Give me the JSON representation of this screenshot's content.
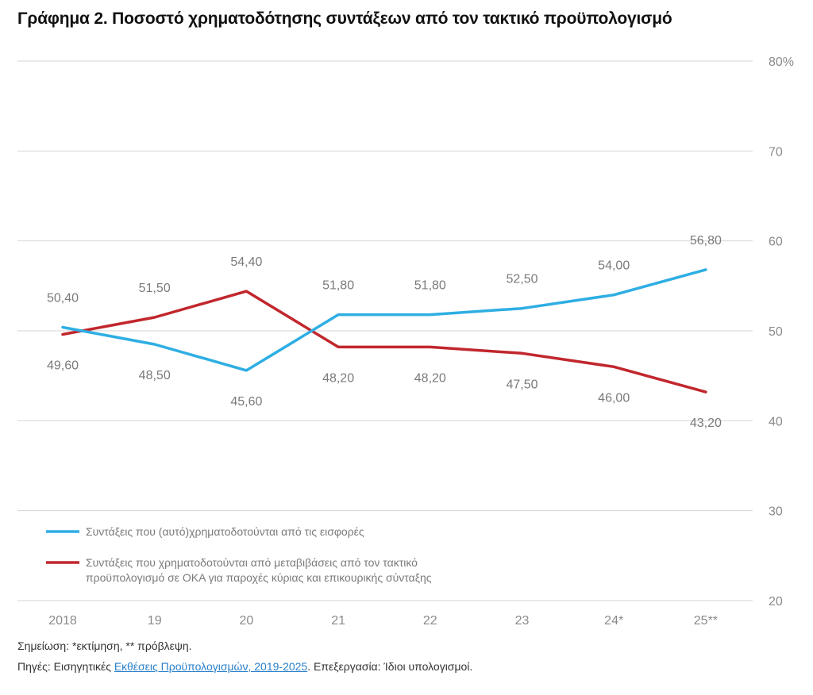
{
  "title": "Γράφημα 2. Ποσοστό χρηματοδότησης συντάξεων από τον τακτικό προϋπολογισμό",
  "chart_data": {
    "type": "line",
    "categories": [
      "2018",
      "19",
      "20",
      "21",
      "22",
      "23",
      "24*",
      "25**"
    ],
    "ylim": [
      20,
      80
    ],
    "yticks": [
      "20",
      "30",
      "40",
      "50",
      "60",
      "70",
      "80%"
    ],
    "grid": true,
    "legend_position": "bottom-left",
    "series": [
      {
        "name": "Συντάξεις που (αυτό)χρηματοδοτούνται από τις εισφορές",
        "color": "#2eaee3",
        "values": [
          50.4,
          48.5,
          45.6,
          51.8,
          51.8,
          52.5,
          54.0,
          56.8
        ],
        "labels": [
          "50,40",
          "48,50",
          "45,60",
          "51,80",
          "51,80",
          "52,50",
          "54,00",
          "56,80"
        ]
      },
      {
        "name": "Συντάξεις που χρηματοδοτούνται από μεταβιβάσεις από τον τακτικό προϋπολογισμό σε ΟΚΑ για παροχές κύριας και επικουρικής σύνταξης",
        "name_lines": [
          "Συντάξεις που χρηματοδοτούνται από μεταβιβάσεις από τον τακτικό",
          "προϋπολογισμό σε ΟΚΑ για παροχές κύριας και επικουρικής σύνταξης"
        ],
        "color": "#c1272d",
        "values": [
          49.6,
          51.5,
          54.4,
          48.2,
          48.2,
          47.5,
          46.0,
          43.2
        ],
        "labels": [
          "49,60",
          "51,50",
          "54,40",
          "48,20",
          "48,20",
          "47,50",
          "46,00",
          "43,20"
        ]
      }
    ]
  },
  "notes": {
    "note": "Σημείωση: *εκτίμηση, ** πρόβλεψη.",
    "source_prefix": "Πηγές: Εισηγητικές ",
    "source_link": "Εκθέσεις Προϋπολογισμών, 2019-2025",
    "source_suffix": ". Επεξεργασία: Ίδιοι υπολογισμοί."
  }
}
